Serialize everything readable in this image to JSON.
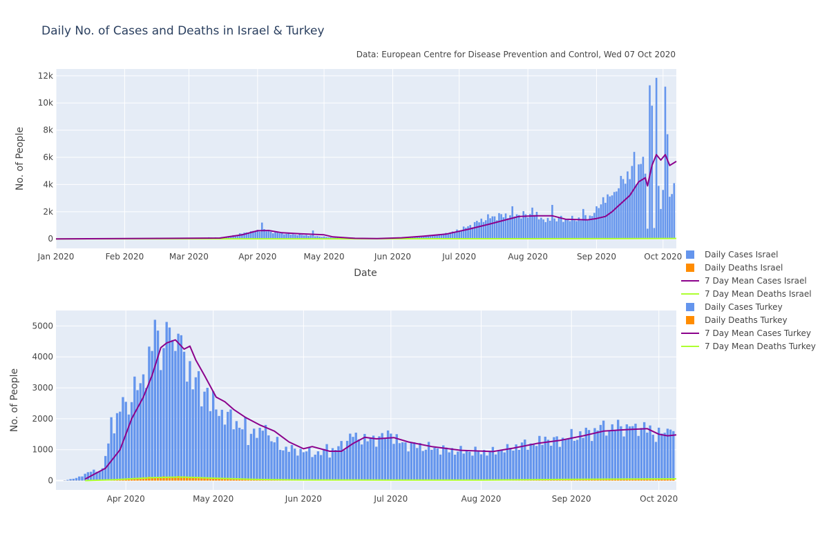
{
  "title": "Daily No. of Cases and Deaths in Israel & Turkey",
  "source": "Data: European Centre for Disease Prevention and Control, Wed 07 Oct 2020",
  "colors": {
    "daily_cases": "#6495ed",
    "daily_deaths": "#ff8c00",
    "mean_cases": "#8b008b",
    "mean_deaths": "#adff2f",
    "plot_bg": "#e5ecf6"
  },
  "legend": [
    {
      "label": "Daily Cases Israel",
      "symbol": "square",
      "color": "#6495ed"
    },
    {
      "label": "Daily Deaths Israel",
      "symbol": "square",
      "color": "#ff8c00"
    },
    {
      "label": "7 Day Mean Cases Israel",
      "symbol": "line",
      "color": "#8b008b"
    },
    {
      "label": "7 Day Mean Deaths Israel",
      "symbol": "line",
      "color": "#adff2f"
    },
    {
      "label": "Daily Cases Turkey",
      "symbol": "square",
      "color": "#6495ed"
    },
    {
      "label": "Daily Deaths Turkey",
      "symbol": "square",
      "color": "#ff8c00"
    },
    {
      "label": "7 Day Mean Cases Turkey",
      "symbol": "line",
      "color": "#8b008b"
    },
    {
      "label": "7 Day Mean Deaths Turkey",
      "symbol": "line",
      "color": "#adff2f"
    }
  ],
  "chart_data": [
    {
      "type": "bar",
      "country": "Israel",
      "xlabel": "Date",
      "ylabel": "No. of People",
      "xrange": [
        "2020-01-01",
        "2020-10-07"
      ],
      "ylim": [
        -700,
        12500
      ],
      "yticks": [
        0,
        2000,
        4000,
        6000,
        8000,
        10000,
        12000
      ],
      "ytick_labels": [
        "0",
        "2k",
        "4k",
        "6k",
        "8k",
        "10k",
        "12k"
      ],
      "xticks": [
        "2020-01-01",
        "2020-02-01",
        "2020-03-01",
        "2020-04-01",
        "2020-05-01",
        "2020-06-01",
        "2020-07-01",
        "2020-08-01",
        "2020-09-01",
        "2020-10-01"
      ],
      "xtick_labels": [
        "Jan 2020",
        "Feb 2020",
        "Mar 2020",
        "Apr 2020",
        "May 2020",
        "Jun 2020",
        "Jul 2020",
        "Aug 2020",
        "Sep 2020",
        "Oct 2020"
      ],
      "grid": true,
      "daily_cases_anchors": [
        [
          "2020-03-15",
          100
        ],
        [
          "2020-03-20",
          200
        ],
        [
          "2020-03-25",
          400
        ],
        [
          "2020-03-30",
          550
        ],
        [
          "2020-04-03",
          650
        ],
        [
          "2020-04-08",
          500
        ],
        [
          "2020-04-15",
          350
        ],
        [
          "2020-04-20",
          300
        ],
        [
          "2020-04-25",
          250
        ],
        [
          "2020-05-01",
          150
        ],
        [
          "2020-05-10",
          50
        ],
        [
          "2020-05-20",
          25
        ],
        [
          "2020-06-01",
          60
        ],
        [
          "2020-06-10",
          150
        ],
        [
          "2020-06-20",
          250
        ],
        [
          "2020-06-28",
          500
        ],
        [
          "2020-07-05",
          900
        ],
        [
          "2020-07-10",
          1300
        ],
        [
          "2020-07-15",
          1600
        ],
        [
          "2020-07-20",
          1700
        ],
        [
          "2020-07-25",
          1800
        ],
        [
          "2020-07-30",
          1750
        ],
        [
          "2020-08-05",
          1700
        ],
        [
          "2020-08-10",
          1300
        ],
        [
          "2020-08-15",
          1500
        ],
        [
          "2020-08-20",
          1400
        ],
        [
          "2020-08-25",
          1500
        ],
        [
          "2020-08-30",
          1700
        ],
        [
          "2020-09-03",
          2800
        ],
        [
          "2020-09-08",
          3000
        ],
        [
          "2020-09-12",
          4000
        ],
        [
          "2020-09-16",
          4700
        ],
        [
          "2020-09-20",
          5000
        ],
        [
          "2020-09-25",
          7500
        ],
        [
          "2020-09-30",
          6000
        ],
        [
          "2020-10-03",
          3800
        ],
        [
          "2020-10-06",
          4500
        ]
      ],
      "daily_cases_overrides": [
        [
          "2020-04-03",
          1200
        ],
        [
          "2020-04-26",
          620
        ],
        [
          "2020-07-25",
          2400
        ],
        [
          "2020-08-03",
          2300
        ],
        [
          "2020-08-12",
          2500
        ],
        [
          "2020-08-26",
          2200
        ],
        [
          "2020-09-01",
          2400
        ],
        [
          "2020-09-08",
          3200
        ],
        [
          "2020-09-13",
          4400
        ],
        [
          "2020-09-18",
          6400
        ],
        [
          "2020-09-23",
          4800
        ],
        [
          "2020-09-24",
          750
        ],
        [
          "2020-09-25",
          11300
        ],
        [
          "2020-09-26",
          9800
        ],
        [
          "2020-09-27",
          800
        ],
        [
          "2020-09-28",
          11850
        ],
        [
          "2020-09-29",
          3900
        ],
        [
          "2020-09-30",
          2200
        ],
        [
          "2020-10-01",
          3600
        ],
        [
          "2020-10-02",
          11200
        ],
        [
          "2020-10-03",
          7700
        ],
        [
          "2020-10-04",
          3100
        ],
        [
          "2020-10-05",
          3300
        ],
        [
          "2020-10-06",
          4100
        ],
        [
          "2020-10-07",
          4700
        ]
      ],
      "mean_cases_anchors": [
        [
          "2020-01-01",
          0
        ],
        [
          "2020-03-15",
          60
        ],
        [
          "2020-03-25",
          300
        ],
        [
          "2020-04-01",
          600
        ],
        [
          "2020-04-06",
          620
        ],
        [
          "2020-04-12",
          450
        ],
        [
          "2020-04-20",
          380
        ],
        [
          "2020-05-01",
          300
        ],
        [
          "2020-05-05",
          150
        ],
        [
          "2020-05-15",
          40
        ],
        [
          "2020-05-25",
          20
        ],
        [
          "2020-06-05",
          80
        ],
        [
          "2020-06-15",
          200
        ],
        [
          "2020-06-25",
          350
        ],
        [
          "2020-07-05",
          700
        ],
        [
          "2020-07-15",
          1100
        ],
        [
          "2020-07-22",
          1400
        ],
        [
          "2020-07-28",
          1650
        ],
        [
          "2020-08-05",
          1700
        ],
        [
          "2020-08-12",
          1700
        ],
        [
          "2020-08-18",
          1450
        ],
        [
          "2020-08-28",
          1400
        ],
        [
          "2020-09-01",
          1500
        ],
        [
          "2020-09-05",
          1650
        ],
        [
          "2020-09-08",
          2000
        ],
        [
          "2020-09-12",
          2600
        ],
        [
          "2020-09-16",
          3200
        ],
        [
          "2020-09-20",
          4200
        ],
        [
          "2020-09-23",
          4500
        ],
        [
          "2020-09-24",
          3900
        ],
        [
          "2020-09-26",
          5400
        ],
        [
          "2020-09-28",
          6200
        ],
        [
          "2020-09-30",
          5800
        ],
        [
          "2020-10-02",
          6200
        ],
        [
          "2020-10-04",
          5400
        ],
        [
          "2020-10-07",
          5700
        ]
      ],
      "mean_deaths_anchors": [
        [
          "2020-01-01",
          0
        ],
        [
          "2020-04-15",
          5
        ],
        [
          "2020-07-20",
          10
        ],
        [
          "2020-09-01",
          15
        ],
        [
          "2020-10-07",
          30
        ]
      ]
    },
    {
      "type": "bar",
      "country": "Turkey",
      "xlabel": "",
      "ylabel": "No. of People",
      "xrange": [
        "2020-03-08",
        "2020-10-07"
      ],
      "ylim": [
        -300,
        5500
      ],
      "yticks": [
        0,
        1000,
        2000,
        3000,
        4000,
        5000
      ],
      "ytick_labels": [
        "0",
        "1000",
        "2000",
        "3000",
        "4000",
        "5000"
      ],
      "xticks": [
        "2020-04-01",
        "2020-05-01",
        "2020-06-01",
        "2020-07-01",
        "2020-08-01",
        "2020-09-01",
        "2020-10-01"
      ],
      "xtick_labels": [
        "Apr 2020",
        "May 2020",
        "Jun 2020",
        "Jul 2020",
        "Aug 2020",
        "Sep 2020",
        "Oct 2020"
      ],
      "grid": true,
      "daily_cases_anchors": [
        [
          "2020-03-11",
          10
        ],
        [
          "2020-03-15",
          80
        ],
        [
          "2020-03-20",
          300
        ],
        [
          "2020-03-24",
          350
        ],
        [
          "2020-03-27",
          1800
        ],
        [
          "2020-04-01",
          2300
        ],
        [
          "2020-04-05",
          3100
        ],
        [
          "2020-04-10",
          4000
        ],
        [
          "2020-04-15",
          4400
        ],
        [
          "2020-04-20",
          4300
        ],
        [
          "2020-04-25",
          3200
        ],
        [
          "2020-04-30",
          2500
        ],
        [
          "2020-05-05",
          2100
        ],
        [
          "2020-05-10",
          1800
        ],
        [
          "2020-05-15",
          1600
        ],
        [
          "2020-05-20",
          1400
        ],
        [
          "2020-05-25",
          1050
        ],
        [
          "2020-06-01",
          950
        ],
        [
          "2020-06-05",
          880
        ],
        [
          "2020-06-10",
          900
        ],
        [
          "2020-06-15",
          1200
        ],
        [
          "2020-06-18",
          1500
        ],
        [
          "2020-06-23",
          1300
        ],
        [
          "2020-06-30",
          1450
        ],
        [
          "2020-07-05",
          1200
        ],
        [
          "2020-07-15",
          1050
        ],
        [
          "2020-07-25",
          950
        ],
        [
          "2020-08-05",
          930
        ],
        [
          "2020-08-15",
          1150
        ],
        [
          "2020-08-25",
          1250
        ],
        [
          "2020-09-05",
          1500
        ],
        [
          "2020-09-15",
          1750
        ],
        [
          "2020-09-25",
          1750
        ],
        [
          "2020-09-30",
          1500
        ],
        [
          "2020-10-07",
          1580
        ]
      ],
      "daily_cases_overrides": [
        [
          "2020-03-26",
          1200
        ],
        [
          "2020-03-27",
          2050
        ],
        [
          "2020-03-31",
          2700
        ],
        [
          "2020-04-06",
          3150
        ],
        [
          "2020-04-11",
          5200
        ],
        [
          "2020-04-12",
          4850
        ],
        [
          "2020-04-16",
          4950
        ],
        [
          "2020-04-19",
          4750
        ],
        [
          "2020-04-20",
          4700
        ],
        [
          "2020-04-22",
          3200
        ],
        [
          "2020-04-24",
          2950
        ],
        [
          "2020-04-27",
          2400
        ],
        [
          "2020-04-29",
          3000
        ],
        [
          "2020-05-07",
          2300
        ],
        [
          "2020-05-13",
          1150
        ],
        [
          "2020-05-19",
          1800
        ],
        [
          "2020-06-09",
          1180
        ],
        [
          "2020-06-19",
          1550
        ],
        [
          "2020-07-01",
          1520
        ],
        [
          "2020-08-10",
          1180
        ],
        [
          "2020-08-23",
          1420
        ],
        [
          "2020-09-11",
          1800
        ],
        [
          "2020-09-15",
          1820
        ],
        [
          "2020-09-20",
          1820
        ],
        [
          "2020-09-23",
          1840
        ],
        [
          "2020-10-05",
          1650
        ]
      ],
      "mean_cases_anchors": [
        [
          "2020-03-18",
          50
        ],
        [
          "2020-03-25",
          400
        ],
        [
          "2020-03-30",
          1000
        ],
        [
          "2020-04-03",
          2000
        ],
        [
          "2020-04-07",
          2700
        ],
        [
          "2020-04-10",
          3400
        ],
        [
          "2020-04-13",
          4300
        ],
        [
          "2020-04-15",
          4450
        ],
        [
          "2020-04-18",
          4550
        ],
        [
          "2020-04-21",
          4250
        ],
        [
          "2020-04-23",
          4350
        ],
        [
          "2020-04-25",
          3900
        ],
        [
          "2020-04-28",
          3400
        ],
        [
          "2020-05-02",
          2700
        ],
        [
          "2020-05-05",
          2550
        ],
        [
          "2020-05-08",
          2300
        ],
        [
          "2020-05-12",
          2050
        ],
        [
          "2020-05-17",
          1800
        ],
        [
          "2020-05-22",
          1600
        ],
        [
          "2020-05-27",
          1250
        ],
        [
          "2020-06-01",
          1030
        ],
        [
          "2020-06-04",
          1100
        ],
        [
          "2020-06-10",
          950
        ],
        [
          "2020-06-14",
          950
        ],
        [
          "2020-06-18",
          1200
        ],
        [
          "2020-06-22",
          1400
        ],
        [
          "2020-06-26",
          1350
        ],
        [
          "2020-07-02",
          1390
        ],
        [
          "2020-07-07",
          1250
        ],
        [
          "2020-07-15",
          1100
        ],
        [
          "2020-07-25",
          980
        ],
        [
          "2020-08-05",
          940
        ],
        [
          "2020-08-12",
          1050
        ],
        [
          "2020-08-20",
          1200
        ],
        [
          "2020-08-28",
          1300
        ],
        [
          "2020-09-05",
          1450
        ],
        [
          "2020-09-12",
          1600
        ],
        [
          "2020-09-20",
          1650
        ],
        [
          "2020-09-27",
          1680
        ],
        [
          "2020-10-01",
          1500
        ],
        [
          "2020-10-04",
          1450
        ],
        [
          "2020-10-07",
          1480
        ]
      ],
      "daily_deaths_anchors": [
        [
          "2020-03-18",
          2
        ],
        [
          "2020-03-28",
          40
        ],
        [
          "2020-04-10",
          110
        ],
        [
          "2020-04-20",
          125
        ],
        [
          "2020-05-01",
          85
        ],
        [
          "2020-05-15",
          45
        ],
        [
          "2020-06-01",
          25
        ],
        [
          "2020-07-01",
          20
        ],
        [
          "2020-08-01",
          20
        ],
        [
          "2020-09-01",
          45
        ],
        [
          "2020-10-07",
          60
        ]
      ],
      "mean_deaths_anchors": [
        [
          "2020-03-18",
          1
        ],
        [
          "2020-03-28",
          30
        ],
        [
          "2020-04-10",
          95
        ],
        [
          "2020-04-20",
          115
        ],
        [
          "2020-05-01",
          80
        ],
        [
          "2020-05-15",
          40
        ],
        [
          "2020-06-01",
          22
        ],
        [
          "2020-07-01",
          18
        ],
        [
          "2020-08-01",
          18
        ],
        [
          "2020-09-01",
          42
        ],
        [
          "2020-10-07",
          58
        ]
      ]
    }
  ]
}
